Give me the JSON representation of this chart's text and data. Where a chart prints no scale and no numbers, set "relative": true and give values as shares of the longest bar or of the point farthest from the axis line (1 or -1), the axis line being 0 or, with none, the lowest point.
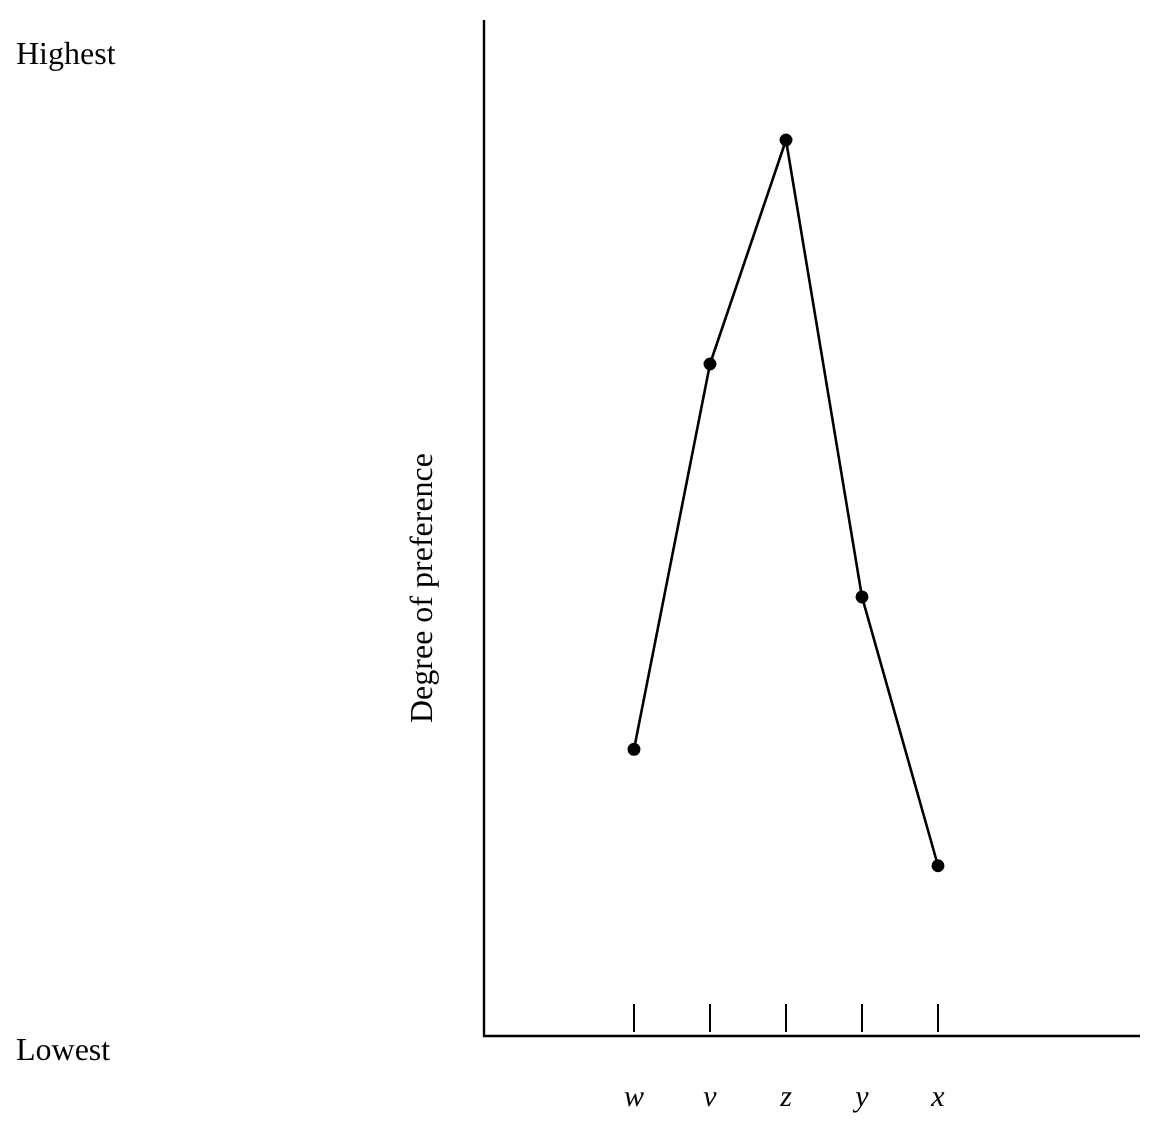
{
  "chart_data": {
    "type": "line",
    "ylabel": "Degree of preference",
    "annotations": [
      "Highest",
      "Lowest"
    ],
    "categories": [
      "w",
      "v",
      "z",
      "y",
      "x"
    ],
    "values": [
      0.32,
      0.75,
      1,
      0.49,
      0.19
    ],
    "color": "#000000",
    "marker": "circle",
    "line_style": "solid",
    "relative": true,
    "grid": false
  }
}
